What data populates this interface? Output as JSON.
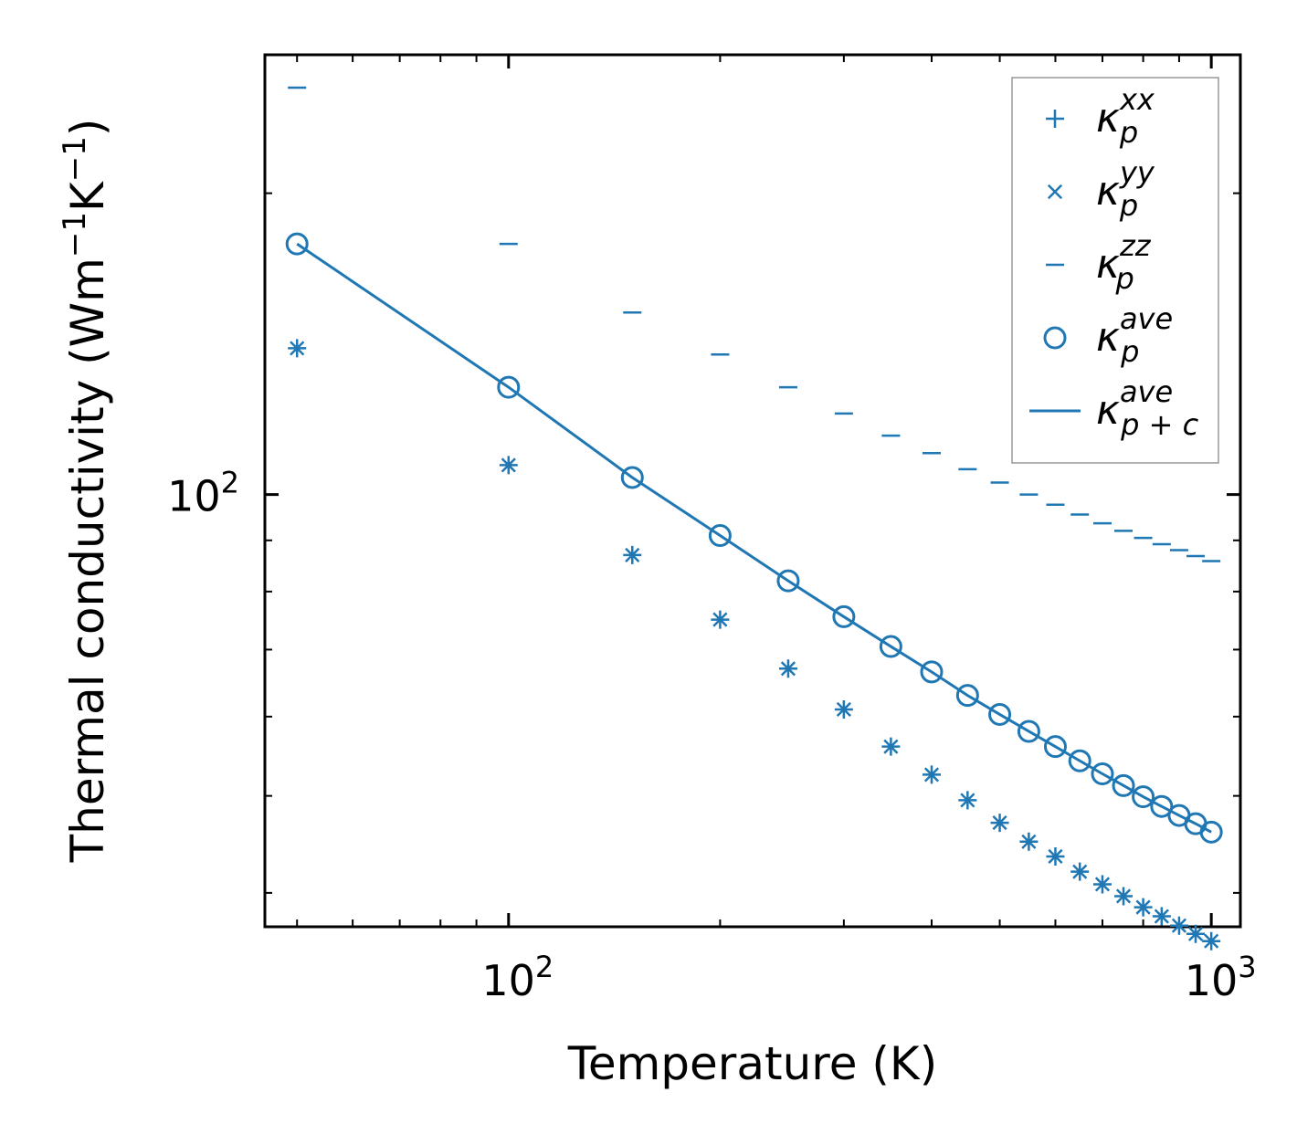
{
  "chart_data": {
    "type": "scatter",
    "title": "",
    "xlabel": "Temperature (K)",
    "ylabel_parts": [
      "Thermal conductivity (Wm",
      "−1",
      "K",
      "−1",
      ")"
    ],
    "xscale": "log",
    "yscale": "log",
    "xlim": [
      45,
      1100
    ],
    "ylim": [
      37,
      275
    ],
    "x_major_ticks": [
      {
        "base": "10",
        "exp": "2",
        "value": 100
      },
      {
        "base": "10",
        "exp": "3",
        "value": 1000
      }
    ],
    "y_major_ticks": [
      {
        "base": "10",
        "exp": "2",
        "value": 100
      }
    ],
    "legend_position": "top-right",
    "x": [
      50,
      100,
      150,
      200,
      250,
      300,
      350,
      400,
      450,
      500,
      550,
      600,
      650,
      700,
      750,
      800,
      850,
      900,
      950,
      1000
    ],
    "series": [
      {
        "name": "kappa_p^xx",
        "label_base": "κ",
        "label_sub": "p",
        "label_sup": "xx",
        "marker": "plus",
        "values": [
          140.0,
          107.0,
          87.0,
          75.0,
          67.0,
          61.0,
          56.0,
          52.5,
          49.5,
          47.0,
          45.0,
          43.5,
          42.0,
          40.8,
          39.7,
          38.7,
          37.9,
          37.1,
          36.4,
          35.8
        ]
      },
      {
        "name": "kappa_p^yy",
        "label_base": "κ",
        "label_sub": "p",
        "label_sup": "yy",
        "marker": "x",
        "values": [
          140.0,
          107.0,
          87.0,
          75.0,
          67.0,
          61.0,
          56.0,
          52.5,
          49.5,
          47.0,
          45.0,
          43.5,
          42.0,
          40.8,
          39.7,
          38.7,
          37.9,
          37.1,
          36.4,
          35.8
        ]
      },
      {
        "name": "kappa_p^zz",
        "label_base": "κ",
        "label_sub": "p",
        "label_sup": "zz",
        "marker": "hline",
        "values": [
          255.0,
          178.0,
          152.0,
          138.0,
          128.0,
          120.5,
          114.5,
          110.0,
          106.0,
          102.8,
          100.0,
          97.7,
          95.5,
          93.6,
          92.0,
          90.5,
          89.2,
          88.0,
          86.8,
          85.8
        ]
      },
      {
        "name": "kappa_p^ave",
        "label_base": "κ",
        "label_sub": "p",
        "label_sup": "ave",
        "marker": "circle",
        "values": [
          178.0,
          128.0,
          104.0,
          91.0,
          82.0,
          75.5,
          70.5,
          66.5,
          63.0,
          60.3,
          58.0,
          56.0,
          54.2,
          52.6,
          51.2,
          49.9,
          48.8,
          47.8,
          46.9,
          46.0
        ]
      },
      {
        "name": "kappa_p+c^ave",
        "label_base": "κ",
        "label_sub": "p + c",
        "label_sup": "ave",
        "marker": "line",
        "values": [
          178.0,
          128.0,
          104.0,
          91.0,
          82.0,
          75.5,
          70.5,
          66.5,
          63.0,
          60.3,
          58.0,
          56.0,
          54.2,
          52.6,
          51.2,
          49.9,
          48.8,
          47.8,
          46.9,
          46.0
        ]
      }
    ],
    "colors": {
      "series": "#1f77b4",
      "axes": "#000000",
      "legend_border": "#999999"
    }
  }
}
